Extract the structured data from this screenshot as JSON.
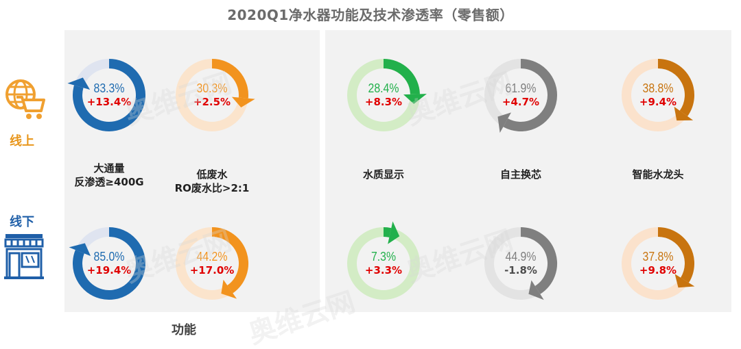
{
  "title": "2020Q1净水器功能及技术渗透率（零售额）",
  "channels": {
    "online": "线上",
    "offline": "线下"
  },
  "footer": "功能",
  "icons": {
    "online": "globe-cart-icon",
    "offline": "store-front-icon"
  },
  "watermark_text": "奥维云网",
  "colors": {
    "blue": "#1f6bb0",
    "blue_light": "#dfe4f0",
    "orange": "#f2931e",
    "orange_light": "#fbe4cc",
    "green": "#22b04b",
    "green_light": "#d3ecc5",
    "gray": "#7f7f7f",
    "gray_light": "#e3e3e3",
    "brown": "#c8740f",
    "brown_light": "#fbe2cc",
    "positive_change": "#e00000",
    "negative_change": "#4d4d4d"
  },
  "chart_data": {
    "type": "donut-grid",
    "title": "2020Q1净水器功能及技术渗透率（零售额）",
    "categories": [
      {
        "name": "大通量\n反渗透≥400G",
        "line1": "大通量",
        "line2": "反渗透≥400G",
        "color_key": "blue"
      },
      {
        "name": "低废水\nRO废水比>2:1",
        "line1": "低废水",
        "line2": "RO废水比>2:1",
        "color_key": "orange"
      },
      {
        "name": "水质显示",
        "line1": "水质显示",
        "line2": "",
        "color_key": "green"
      },
      {
        "name": "自主换芯",
        "line1": "自主换芯",
        "line2": "",
        "color_key": "gray"
      },
      {
        "name": "智能水龙头",
        "line1": "智能水龙头",
        "line2": "",
        "color_key": "brown"
      }
    ],
    "series": [
      {
        "name": "线上",
        "values": [
          83.3,
          30.3,
          28.4,
          61.9,
          38.8
        ],
        "labels": [
          "83.3%",
          "30.3%",
          "28.4%",
          "61.9%",
          "38.8%"
        ],
        "changes": [
          "+13.4%",
          "+2.5%",
          "+8.3%",
          "+4.7%",
          "+9.4%"
        ]
      },
      {
        "name": "线下",
        "values": [
          85.0,
          44.2,
          7.3,
          44.9,
          37.8
        ],
        "labels": [
          "85.0%",
          "44.2%",
          "7.3%",
          "44.9%",
          "37.8%"
        ],
        "changes": [
          "+19.4%",
          "+17.0%",
          "+3.3%",
          "-1.8%",
          "+9.8%"
        ]
      }
    ]
  }
}
